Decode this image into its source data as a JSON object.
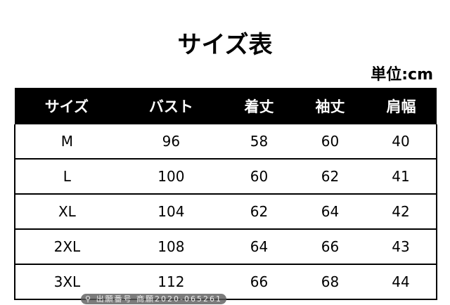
{
  "title": "サイズ表",
  "unit": "単位:cm",
  "table": {
    "headers": [
      "サイズ",
      "バスト",
      "着丈",
      "袖丈",
      "肩幅"
    ],
    "rows": [
      [
        "M",
        "96",
        "58",
        "60",
        "40"
      ],
      [
        "L",
        "100",
        "60",
        "62",
        "41"
      ],
      [
        "XL",
        "104",
        "62",
        "64",
        "42"
      ],
      [
        "2XL",
        "108",
        "64",
        "66",
        "43"
      ],
      [
        "3XL",
        "112",
        "66",
        "68",
        "44"
      ]
    ]
  },
  "watermark": "出願番号 商願2020-065261"
}
